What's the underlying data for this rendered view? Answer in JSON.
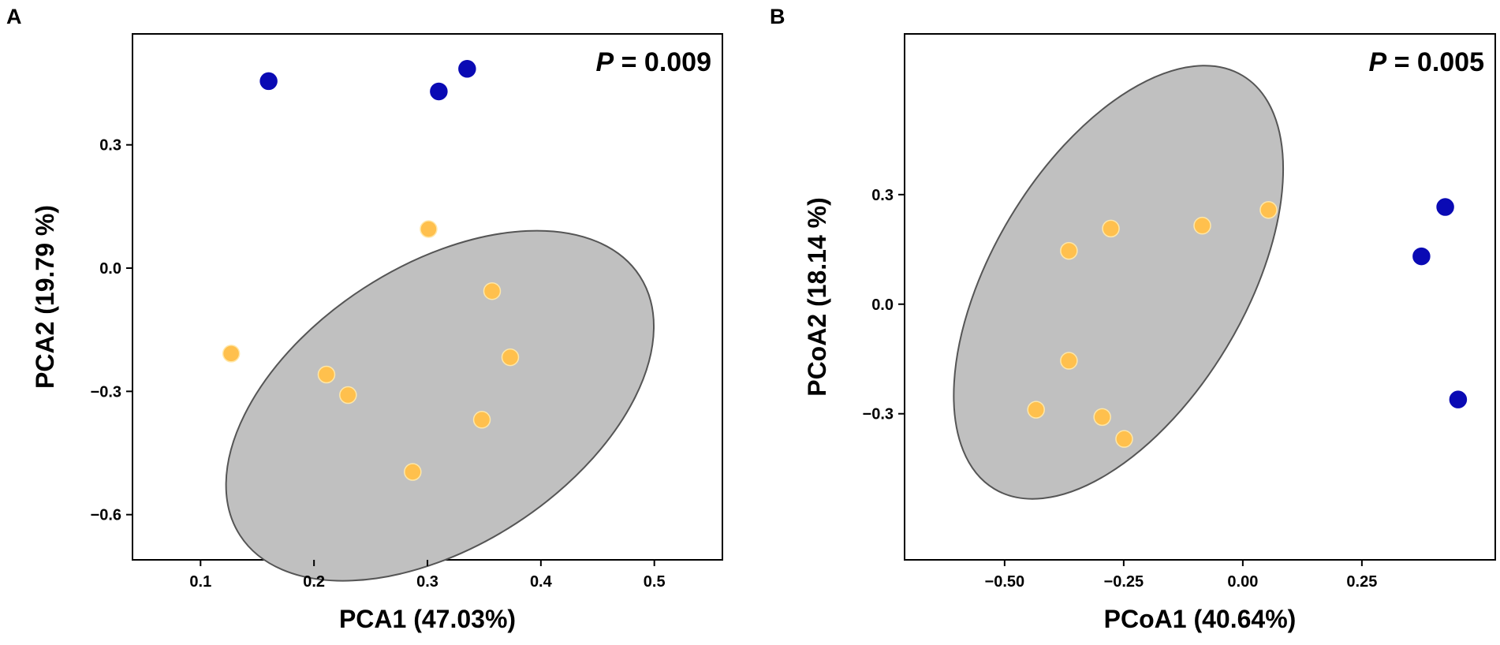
{
  "chart_data": [
    {
      "type": "scatter",
      "panel": "A",
      "xlabel": "PCA1 (47.03%)",
      "ylabel": "PCA2 (19.79 %)",
      "xlim": [
        0.04,
        0.56
      ],
      "ylim": [
        -0.71,
        0.57
      ],
      "xticks": [
        0.1,
        0.2,
        0.3,
        0.4,
        0.5
      ],
      "xtick_labels": [
        "0.1",
        "0.2",
        "0.3",
        "0.4",
        "0.5"
      ],
      "yticks": [
        0.3,
        0.0,
        -0.3,
        -0.6
      ],
      "ytick_labels": [
        "0.3",
        "0.0",
        "−0.3",
        "−0.6"
      ],
      "annotation": {
        "italic": "P",
        "rest": " = 0.009"
      },
      "ellipse": {
        "cx": 0.311,
        "cy": -0.335,
        "rx": 0.21,
        "ry": 0.341,
        "angle_deg": -33
      },
      "series": [
        {
          "name": "group-blue",
          "color": "#0a0ab4",
          "x": [
            0.16,
            0.31,
            0.335
          ],
          "y": [
            0.455,
            0.43,
            0.485
          ]
        },
        {
          "name": "group-yellow",
          "color": "#ffc04d",
          "x": [
            0.127,
            0.211,
            0.23,
            0.287,
            0.301,
            0.348,
            0.357,
            0.373
          ],
          "y": [
            -0.208,
            -0.259,
            -0.309,
            -0.496,
            0.095,
            -0.369,
            -0.056,
            -0.217
          ]
        }
      ]
    },
    {
      "type": "scatter",
      "panel": "B",
      "xlabel": "PCoA1 (40.64%)",
      "ylabel": "PCoA2 (18.14 %)",
      "xlim": [
        -0.71,
        0.53
      ],
      "ylim": [
        -0.7,
        0.74
      ],
      "xticks": [
        -0.5,
        -0.25,
        0.0,
        0.25
      ],
      "xtick_labels": [
        "−0.50",
        "−0.25",
        "0.00",
        "0.25"
      ],
      "yticks": [
        0.3,
        0.0,
        -0.3
      ],
      "ytick_labels": [
        "0.3",
        "0.0",
        "−0.3"
      ],
      "annotation": {
        "italic": "P",
        "rest": " = 0.005"
      },
      "ellipse": {
        "cx": -0.261,
        "cy": 0.06,
        "rx": 0.265,
        "ry": 0.66,
        "angle_deg": 31
      },
      "series": [
        {
          "name": "group-blue",
          "color": "#0a0ab4",
          "x": [
            0.375,
            0.425,
            0.452
          ],
          "y": [
            0.131,
            0.266,
            -0.261
          ]
        },
        {
          "name": "group-yellow",
          "color": "#ffc04d",
          "x": [
            -0.434,
            -0.365,
            -0.365,
            -0.295,
            -0.277,
            -0.249,
            -0.085,
            0.054
          ],
          "y": [
            -0.289,
            0.146,
            -0.155,
            -0.309,
            0.207,
            -0.369,
            0.215,
            0.258
          ]
        }
      ]
    }
  ]
}
